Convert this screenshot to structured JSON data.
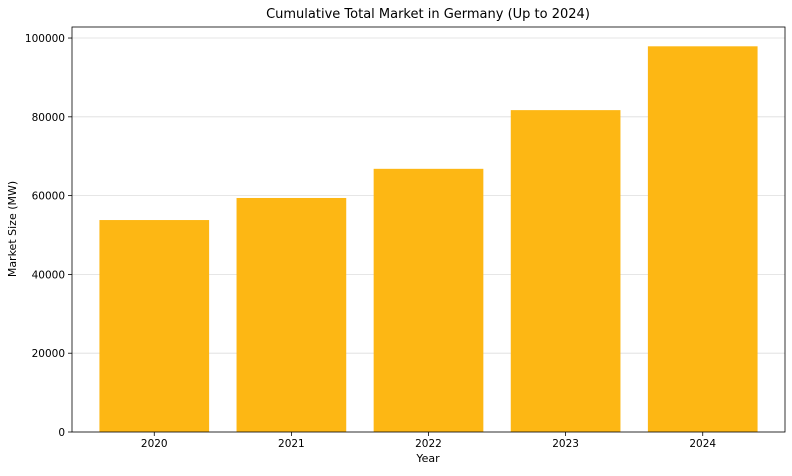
{
  "chart_data": {
    "type": "bar",
    "title": "Cumulative Total Market in Germany (Up to 2024)",
    "xlabel": "Year",
    "ylabel": "Market Size (MW)",
    "categories": [
      "2020",
      "2021",
      "2022",
      "2023",
      "2024"
    ],
    "values": [
      53800,
      59400,
      66800,
      81700,
      97900
    ],
    "ylim": [
      0,
      102800
    ],
    "yticks": [
      0,
      20000,
      40000,
      60000,
      80000,
      100000
    ],
    "ytick_labels": [
      "0",
      "20000",
      "40000",
      "60000",
      "80000",
      "100000"
    ],
    "grid": "horizontal",
    "bar_color": "#fdb714",
    "grid_color": "#dddddd"
  }
}
